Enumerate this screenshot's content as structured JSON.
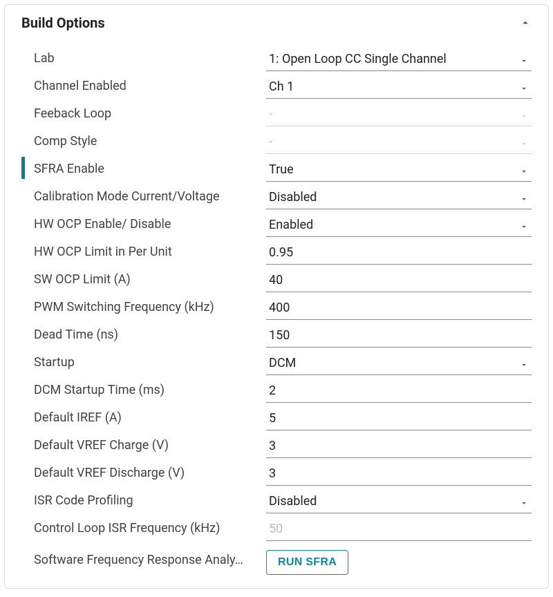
{
  "panel": {
    "title": "Build Options"
  },
  "rows": [
    {
      "label": "Lab",
      "kind": "select",
      "state": "normal",
      "value": "1: Open Loop CC Single Channel"
    },
    {
      "label": "Channel Enabled",
      "kind": "select",
      "state": "normal",
      "value": "Ch 1"
    },
    {
      "label": "Feeback Loop",
      "kind": "select",
      "state": "disabled",
      "value": "-"
    },
    {
      "label": "Comp Style",
      "kind": "select",
      "state": "disabled",
      "value": "-"
    },
    {
      "label": "SFRA Enable",
      "kind": "select",
      "state": "normal",
      "value": "True",
      "highlight": true
    },
    {
      "label": "Calibration Mode Current/Voltage",
      "kind": "select",
      "state": "normal",
      "value": "Disabled"
    },
    {
      "label": "HW OCP Enable/ Disable",
      "kind": "select",
      "state": "normal",
      "value": "Enabled"
    },
    {
      "label": "HW OCP Limit in Per Unit",
      "kind": "input",
      "state": "normal",
      "value": "0.95"
    },
    {
      "label": "SW OCP Limit (A)",
      "kind": "input",
      "state": "normal",
      "value": "40"
    },
    {
      "label": "PWM Switching Frequency (kHz)",
      "kind": "input",
      "state": "normal",
      "value": "400"
    },
    {
      "label": "Dead Time (ns)",
      "kind": "input",
      "state": "normal",
      "value": "150"
    },
    {
      "label": "Startup",
      "kind": "select",
      "state": "normal",
      "value": "DCM"
    },
    {
      "label": "DCM Startup Time (ms)",
      "kind": "input",
      "state": "normal",
      "value": "2"
    },
    {
      "label": "Default IREF (A)",
      "kind": "input",
      "state": "normal",
      "value": "5"
    },
    {
      "label": "Default VREF Charge (V)",
      "kind": "input",
      "state": "normal",
      "value": "3"
    },
    {
      "label": "Default VREF Discharge (V)",
      "kind": "input",
      "state": "normal",
      "value": "3"
    },
    {
      "label": "ISR Code Profiling",
      "kind": "select",
      "state": "normal",
      "value": "Disabled"
    },
    {
      "label": "Control Loop ISR Frequency (kHz)",
      "kind": "input",
      "state": "readonly",
      "value": "50"
    }
  ],
  "action": {
    "label": "Software Frequency Response Analy…",
    "button": "RUN SFRA"
  },
  "colors": {
    "accent": "#00838f",
    "button_border": "#0d8a97",
    "text": "#333333",
    "muted": "#bdbdbd"
  }
}
